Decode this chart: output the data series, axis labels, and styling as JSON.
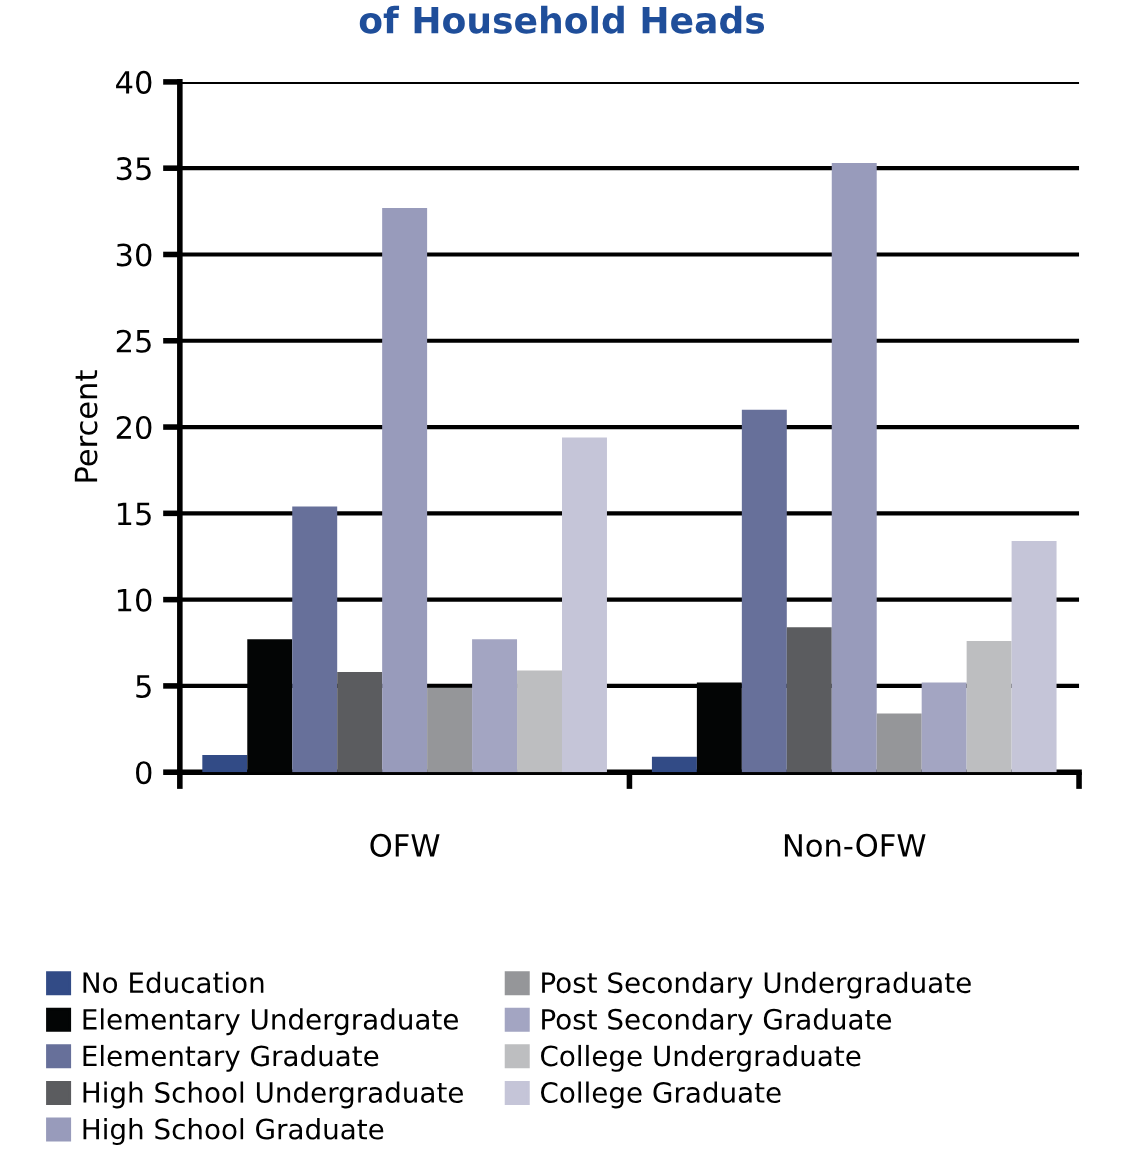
{
  "chart_data": {
    "type": "bar",
    "title": "of Household Heads",
    "ylabel": "Percent",
    "categories": [
      "OFW",
      "Non-OFW"
    ],
    "series": [
      {
        "name": "No Education",
        "color": "#324b86",
        "values": [
          1.0,
          0.9
        ]
      },
      {
        "name": "Elementary Undergraduate",
        "color": "#030505",
        "values": [
          7.7,
          5.2
        ]
      },
      {
        "name": "Elementary Graduate",
        "color": "#67709a",
        "values": [
          15.4,
          21.0
        ]
      },
      {
        "name": "High School Undergraduate",
        "color": "#5b5c5f",
        "values": [
          5.8,
          8.4
        ]
      },
      {
        "name": "High School Graduate",
        "color": "#989bbb",
        "values": [
          32.7,
          35.3
        ]
      },
      {
        "name": "Post Secondary Undergraduate",
        "color": "#959699",
        "values": [
          4.9,
          3.4
        ]
      },
      {
        "name": "Post Secondary Graduate",
        "color": "#a3a5c2",
        "values": [
          7.7,
          5.2
        ]
      },
      {
        "name": "College Undergraduate",
        "color": "#bdbec0",
        "values": [
          5.9,
          7.6
        ]
      },
      {
        "name": "College Graduate",
        "color": "#c5c5d8",
        "values": [
          19.4,
          13.4
        ]
      }
    ],
    "ylim": [
      0,
      40
    ],
    "yticks": [
      0,
      5,
      10,
      15,
      20,
      25,
      30,
      35,
      40
    ],
    "grid": "y",
    "legend": "bottom"
  }
}
